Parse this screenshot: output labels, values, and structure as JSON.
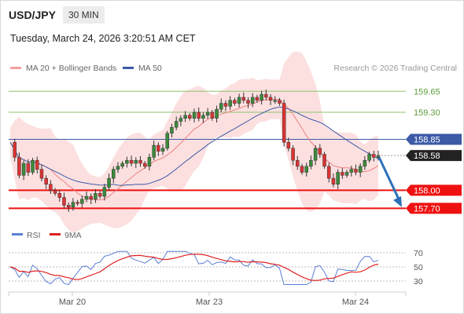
{
  "header": {
    "pair": "USD/JPY",
    "timeframe": "30 MIN",
    "timestamp": "Tuesday, March 24, 2026 3:20:51 AM CET"
  },
  "legend": {
    "ma20": "MA 20 + Bollinger Bands",
    "ma50": "MA 50",
    "credit": "Research © 2026 Trading Central"
  },
  "levels": {
    "r2": "159.65",
    "r1": "159.30",
    "ma_level": "158.85",
    "price": "158.58",
    "s1": "158.00",
    "s2": "157.70"
  },
  "rsi_legend": {
    "rsi": "RSI",
    "ma": "9MA"
  },
  "rsi_axis": [
    "70",
    "50",
    "30"
  ],
  "x_axis": [
    "Mar 20",
    "Mar 23",
    "Mar 24"
  ],
  "colors": {
    "resistance": "#8dc26f",
    "support": "#e11",
    "ma50": "#3c5aa6",
    "ma20": "#f08080",
    "band": "#fbd5d5",
    "price_tag": "#222222",
    "rsi": "#5b7fd6",
    "rsi_ma": "#e02020",
    "arrow": "#2c6fb8"
  },
  "chart_data": {
    "type": "candlestick",
    "instrument": "USD/JPY",
    "interval": "30 MIN",
    "ylim": [
      157.6,
      159.85
    ],
    "horizontal_levels": [
      {
        "value": 159.65,
        "kind": "resistance"
      },
      {
        "value": 159.3,
        "kind": "resistance"
      },
      {
        "value": 158.85,
        "kind": "ma50"
      },
      {
        "value": 158.58,
        "kind": "last-price"
      },
      {
        "value": 158.0,
        "kind": "support"
      },
      {
        "value": 157.7,
        "kind": "support"
      }
    ],
    "close_path": [
      158.8,
      158.55,
      158.25,
      158.45,
      158.3,
      158.5,
      158.35,
      158.2,
      158.1,
      158.0,
      157.95,
      157.88,
      157.75,
      157.72,
      157.8,
      157.78,
      157.85,
      157.9,
      157.85,
      157.95,
      157.9,
      158.05,
      158.2,
      158.35,
      158.4,
      158.45,
      158.5,
      158.45,
      158.5,
      158.45,
      158.4,
      158.55,
      158.75,
      158.65,
      158.7,
      158.95,
      159.05,
      159.15,
      159.2,
      159.25,
      159.2,
      159.3,
      159.2,
      159.25,
      159.3,
      159.2,
      159.35,
      159.45,
      159.4,
      159.5,
      159.45,
      159.55,
      159.5,
      159.45,
      159.55,
      159.5,
      159.6,
      159.55,
      159.5,
      159.5,
      159.45,
      158.8,
      158.7,
      158.5,
      158.4,
      158.3,
      158.4,
      158.5,
      158.7,
      158.6,
      158.4,
      158.2,
      158.1,
      158.3,
      158.25,
      158.3,
      158.35,
      158.3,
      158.4,
      158.5,
      158.6,
      158.55,
      158.58
    ],
    "rsi": {
      "levels": [
        70,
        50,
        30
      ]
    },
    "x_ticks": [
      "Mar 20",
      "Mar 23",
      "Mar 24"
    ],
    "forecast": "down arrow toward 157.70"
  }
}
